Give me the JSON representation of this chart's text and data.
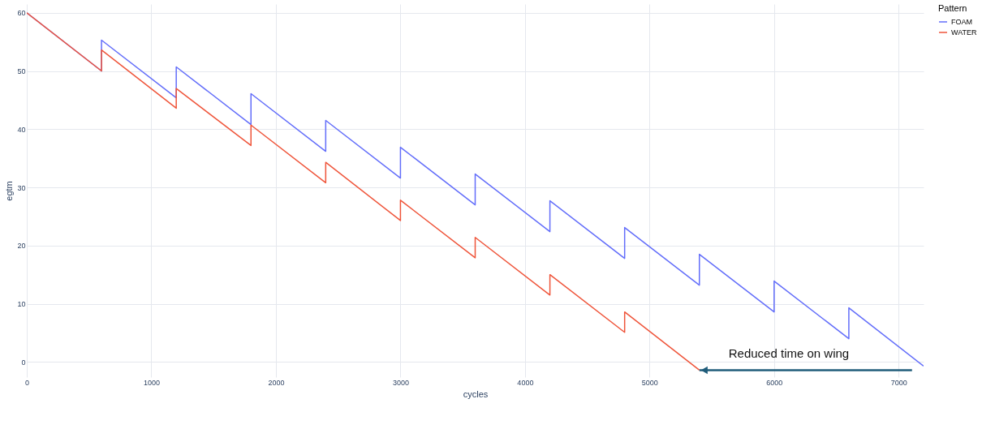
{
  "chart_data": {
    "type": "line",
    "xlabel": "cycles",
    "ylabel": "egtm",
    "legend_title": "Pattern",
    "series": [
      {
        "name": "FOAM",
        "color": "#636efa",
        "x": [
          0,
          600,
          600,
          1200,
          1200,
          1800,
          1800,
          2400,
          2400,
          3000,
          3000,
          3600,
          3600,
          4200,
          4200,
          4800,
          4800,
          5400,
          5400,
          6000,
          6000,
          6600,
          6600,
          7200
        ],
        "values": [
          60,
          50,
          55.3,
          45.4,
          50.7,
          40.8,
          46.1,
          36.2,
          41.5,
          31.6,
          36.9,
          27,
          32.3,
          22.4,
          27.7,
          17.8,
          23.1,
          13.2,
          18.5,
          8.6,
          13.9,
          4,
          9.3,
          -0.7
        ]
      },
      {
        "name": "WATER",
        "color": "#ef553b",
        "x": [
          0,
          600,
          600,
          1200,
          1200,
          1800,
          1800,
          2400,
          2400,
          3000,
          3000,
          3600,
          3600,
          4200,
          4200,
          4800,
          4800,
          5400
        ],
        "values": [
          60,
          50,
          53.6,
          43.6,
          47,
          37.2,
          40.7,
          30.8,
          34.3,
          24.3,
          27.8,
          17.9,
          21.4,
          11.5,
          15,
          5.1,
          8.6,
          -1.4
        ]
      }
    ],
    "annotations": [
      {
        "text": "Reduced time on wing",
        "x": 5400,
        "y": -1.4
      }
    ],
    "xlim": [
      0,
      7200
    ],
    "xticks": [
      0,
      1000,
      2000,
      3000,
      4000,
      5000,
      6000,
      7000
    ],
    "ylim": [
      -2.6,
      61.5
    ],
    "yticks": [
      0,
      10,
      20,
      30,
      40,
      50,
      60
    ],
    "grid": true,
    "legend": "top right",
    "line_style": "solid",
    "marker": "none"
  }
}
